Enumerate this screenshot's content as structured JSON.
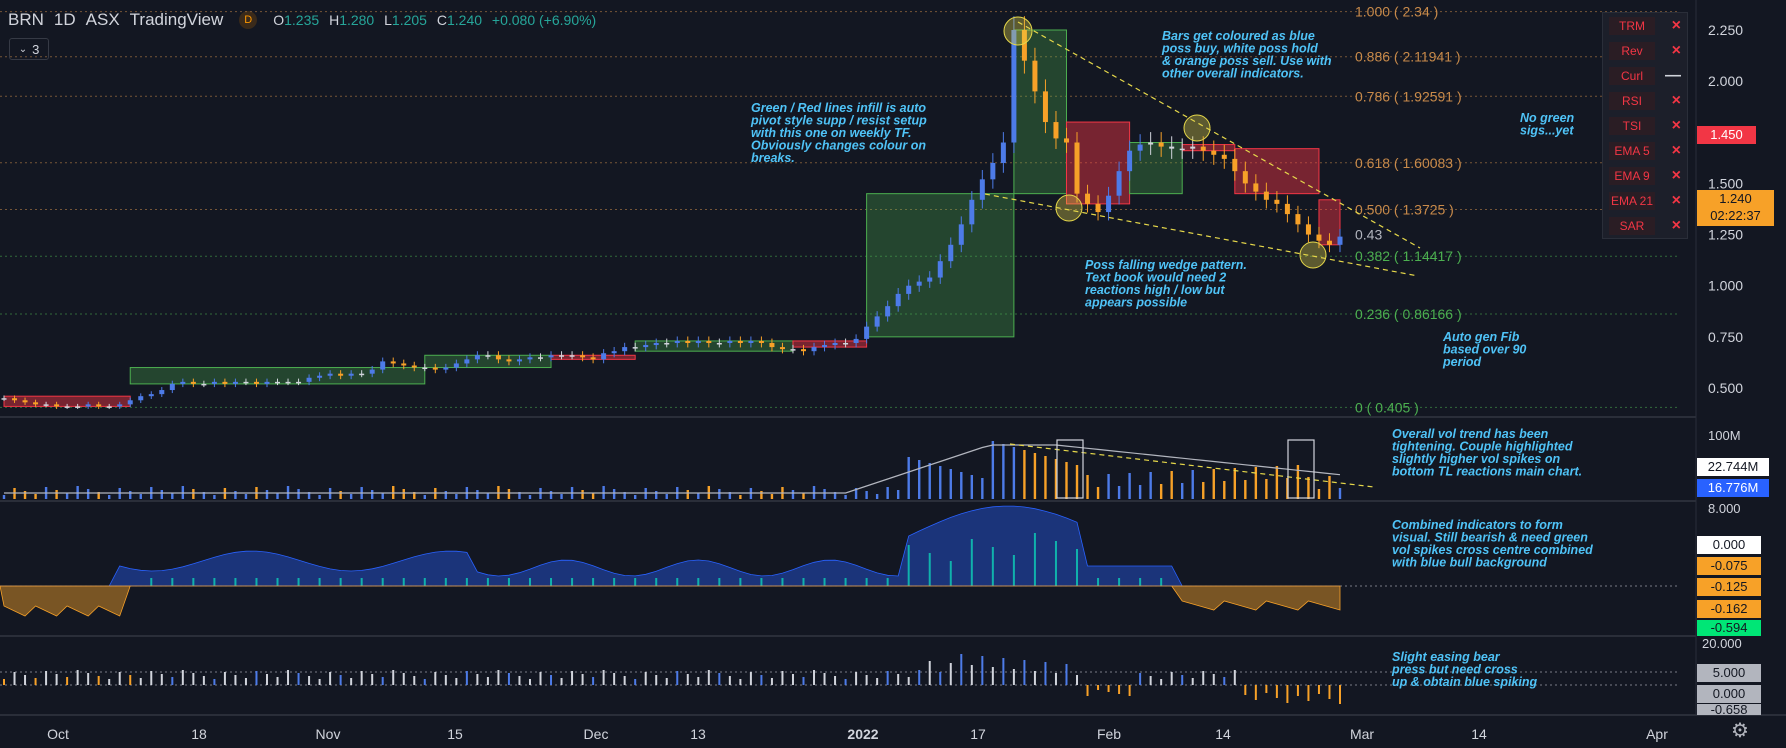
{
  "header": {
    "symbol": "BRN",
    "interval": "1D",
    "exchange": "ASX",
    "source": "TradingView",
    "badge": "D",
    "o_label": "O",
    "o_value": "1.235",
    "h_label": "H",
    "h_value": "1.280",
    "l_label": "L",
    "l_value": "1.205",
    "c_label": "C",
    "c_value": "1.240",
    "change": "+0.080 (+6.90%)",
    "collapse_count": "3"
  },
  "indicator_legend": [
    {
      "name": "TRM",
      "state": "×"
    },
    {
      "name": "Rev",
      "state": "×"
    },
    {
      "name": "Curl",
      "state": "—"
    },
    {
      "name": "RSI",
      "state": "×"
    },
    {
      "name": "TSI",
      "state": "×"
    },
    {
      "name": "EMA 5",
      "state": "×"
    },
    {
      "name": "EMA 9",
      "state": "×"
    },
    {
      "name": "EMA 21",
      "state": "×"
    },
    {
      "name": "SAR",
      "state": "×"
    }
  ],
  "fib_levels": [
    {
      "label": "1.000 ( 2.34 )",
      "value": 2.34,
      "color": "#c88a4a"
    },
    {
      "label": "0.886 ( 2.11941 )",
      "value": 2.11941,
      "color": "#c88a4a"
    },
    {
      "label": "0.786 ( 1.92591 )",
      "value": 1.92591,
      "color": "#c88a4a"
    },
    {
      "label": "0.618 ( 1.60083 )",
      "value": 1.60083,
      "color": "#c88a4a"
    },
    {
      "label": "0.500 ( 1.3725 )",
      "value": 1.3725,
      "color": "#c88a4a"
    },
    {
      "label": "0.382 ( 1.14417 )",
      "value": 1.14417,
      "color": "#4caf50"
    },
    {
      "label": "0.236 ( 0.86166 )",
      "value": 0.86166,
      "color": "#4caf50"
    },
    {
      "label": "0 ( 0.405 )",
      "value": 0.405,
      "color": "#4caf50"
    }
  ],
  "level_043": "0.43",
  "annotations": {
    "bars_coloured": "Bars get coloured as blue\nposs buy, white poss hold\n& orange poss sell. Use with\nother overall indicators.",
    "green_red_lines": "Green / Red lines infill is auto\npivot style supp / resist setup\nwith this one on weekly TF.\nObviously changes colour on\nbreaks.",
    "no_green": "No green\nsigs...yet",
    "wedge": "Poss falling wedge pattern.\nText book would need 2\nreactions high / low but\nappears possible",
    "auto_fib": "Auto gen Fib\nbased over 90\nperiod",
    "vol_trend": "Overall vol trend has been\ntightening. Couple highlighted\nslightly higher vol spikes on\nbottom TL reactions main chart.",
    "combined": "Combined indicators to form\nvisual. Still bearish & need green\nvol spikes cross centre combined\nwith blue bull background",
    "easing": "Slight easing bear\npress but need cross\nup & obtain blue spiking"
  },
  "price_axis": {
    "ticks": [
      "2.250",
      "2.000",
      "1.750",
      "1.500",
      "1.250",
      "1.000",
      "0.750",
      "0.500"
    ],
    "tick_values": [
      2.25,
      2.0,
      1.75,
      1.5,
      1.25,
      1.0,
      0.75,
      0.5
    ],
    "red_tag": "1.450",
    "red_tag_value": 1.45,
    "last_price": "1.240",
    "last_price_value": 1.24,
    "countdown": "02:22:37"
  },
  "volume_axis": {
    "top": "100M",
    "tag1": "22.744M",
    "tag2": "16.776M"
  },
  "combined_axis": {
    "top": "8.000",
    "tags": [
      "0.000",
      "-0.075",
      "-0.125",
      "-0.162",
      "-0.594"
    ]
  },
  "osc_axis": {
    "top": "20.000",
    "tags": [
      "5.000",
      "0.000",
      "-0.658"
    ]
  },
  "time_axis": [
    "Oct",
    "18",
    "Nov",
    "15",
    "Dec",
    "13",
    "2022",
    "17",
    "Feb",
    "14",
    "Mar",
    "14",
    "Apr"
  ],
  "chart_data": {
    "type": "candlestick",
    "title": "BRN 1D ASX",
    "price_range": [
      0.34,
      2.4
    ],
    "price_approx": [
      0.45,
      0.44,
      0.43,
      0.42,
      0.42,
      0.41,
      0.41,
      0.41,
      0.42,
      0.41,
      0.41,
      0.42,
      0.44,
      0.46,
      0.47,
      0.49,
      0.52,
      0.53,
      0.52,
      0.52,
      0.53,
      0.52,
      0.53,
      0.53,
      0.52,
      0.53,
      0.53,
      0.53,
      0.53,
      0.55,
      0.56,
      0.57,
      0.56,
      0.57,
      0.57,
      0.59,
      0.63,
      0.62,
      0.61,
      0.6,
      0.6,
      0.59,
      0.6,
      0.62,
      0.64,
      0.66,
      0.66,
      0.64,
      0.63,
      0.64,
      0.65,
      0.65,
      0.66,
      0.66,
      0.66,
      0.65,
      0.64,
      0.67,
      0.68,
      0.7,
      0.7,
      0.71,
      0.72,
      0.72,
      0.73,
      0.72,
      0.73,
      0.72,
      0.72,
      0.73,
      0.72,
      0.73,
      0.72,
      0.7,
      0.69,
      0.69,
      0.68,
      0.7,
      0.71,
      0.72,
      0.72,
      0.74,
      0.8,
      0.85,
      0.9,
      0.96,
      1.0,
      1.02,
      1.04,
      1.12,
      1.2,
      1.3,
      1.42,
      1.52,
      1.6,
      1.7,
      2.25,
      2.1,
      1.95,
      1.8,
      1.72,
      1.7,
      1.45,
      1.4,
      1.36,
      1.44,
      1.56,
      1.66,
      1.69,
      1.7,
      1.68,
      1.67,
      1.67,
      1.68,
      1.66,
      1.64,
      1.62,
      1.56,
      1.5,
      1.46,
      1.42,
      1.4,
      1.35,
      1.3,
      1.25,
      1.22,
      1.2,
      1.24
    ]
  }
}
